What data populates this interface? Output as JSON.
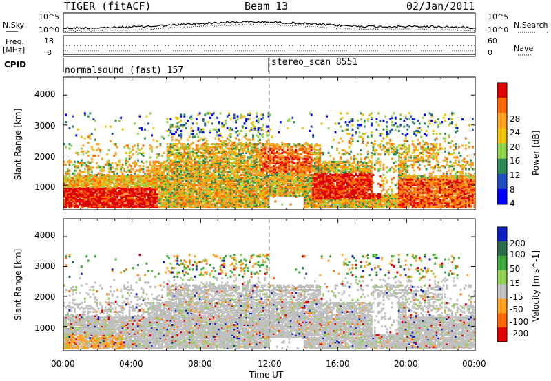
{
  "header": {
    "radar": "TIGER (fitACF)",
    "beam": "Beam 13",
    "date": "02/Jan/2011"
  },
  "strip": {
    "nsky_label": "N.Sky",
    "nsearch_label": "N.Search",
    "nsky_ticks": [
      "10^5",
      "10^0"
    ],
    "nsearch_ticks": [
      "10^5",
      "10^0"
    ],
    "freq_label": "Freq.",
    "freq_unit": "[MHz]",
    "freq_ticks": [
      "18",
      "8"
    ],
    "nave_label": "Nave",
    "nave_ticks": [
      "60",
      "0"
    ],
    "cpid_label": "CPID",
    "cpid_entries": [
      "normalsound (fast) 157",
      "stereo_scan 8551"
    ]
  },
  "chart_data": [
    {
      "type": "heatmap",
      "panel": "power",
      "ylabel": "Slant Range [km]",
      "yticks": [
        "4000",
        "3000",
        "2000",
        "1000"
      ],
      "ylim": [
        180,
        4600
      ],
      "colorbar_label": "Power [dB]",
      "colorbar_ticks": [
        "28",
        "24",
        "20",
        "16",
        "12",
        "8",
        "4"
      ],
      "colors": [
        "#e00000",
        "#ff6a00",
        "#ffa020",
        "#f0c000",
        "#8fd24a",
        "#2e8b57",
        "#2050c0",
        "#0000ff"
      ]
    },
    {
      "type": "heatmap",
      "panel": "velocity",
      "ylabel": "Slant Range [km]",
      "yticks": [
        "4000",
        "3000",
        "2000",
        "1000"
      ],
      "ylim": [
        180,
        4600
      ],
      "colorbar_label": "Velocity [m s^-1]",
      "colorbar_ticks": [
        "200",
        "100",
        "50",
        "15",
        "-15",
        "-50",
        "-100",
        "-200"
      ],
      "colors": [
        "#1020c0",
        "#2e6b4a",
        "#3aa83a",
        "#90d050",
        "#c0c0c0",
        "#ffa020",
        "#ff6a00",
        "#e00000"
      ]
    }
  ],
  "xaxis": {
    "label": "Time UT",
    "ticks": [
      "00:00",
      "04:00",
      "08:00",
      "12:00",
      "16:00",
      "20:00",
      "00:00"
    ]
  }
}
